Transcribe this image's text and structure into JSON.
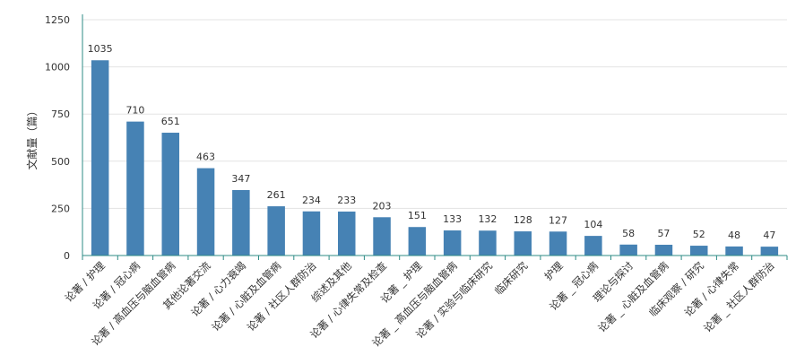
{
  "chart_data": {
    "type": "bar",
    "ylabel": "文献量（篇）",
    "ylim": [
      0,
      1250
    ],
    "yticks": [
      0,
      250,
      500,
      750,
      1000,
      1250
    ],
    "grid": true,
    "legend": "none",
    "bar_color": "#4682b4",
    "axis_color": "#2e8b86",
    "categories": [
      "论著 / 护理",
      "论著 / 冠心病",
      "论著 / 高血压与脑血管病",
      "其他论著交流",
      "论著 / 心力衰竭",
      "论著 / 心脏及血管病",
      "论著 / 社区人群防治",
      "综述及其他",
      "论著 / 心律失常及检查",
      "论著 _ 护理",
      "论著 _ 高血压与脑血管病",
      "论著 / 实验与临床研究",
      "临床研究",
      "护理",
      "论著 _ 冠心病",
      "理论与探讨",
      "论著 _ 心脏及血管病",
      "临床观察 / 研究",
      "论著 / 心律失常",
      "论著 _ 社区人群防治"
    ],
    "values": [
      1035,
      710,
      651,
      463,
      347,
      261,
      234,
      233,
      203,
      151,
      133,
      132,
      128,
      127,
      104,
      58,
      57,
      52,
      48,
      47
    ]
  }
}
